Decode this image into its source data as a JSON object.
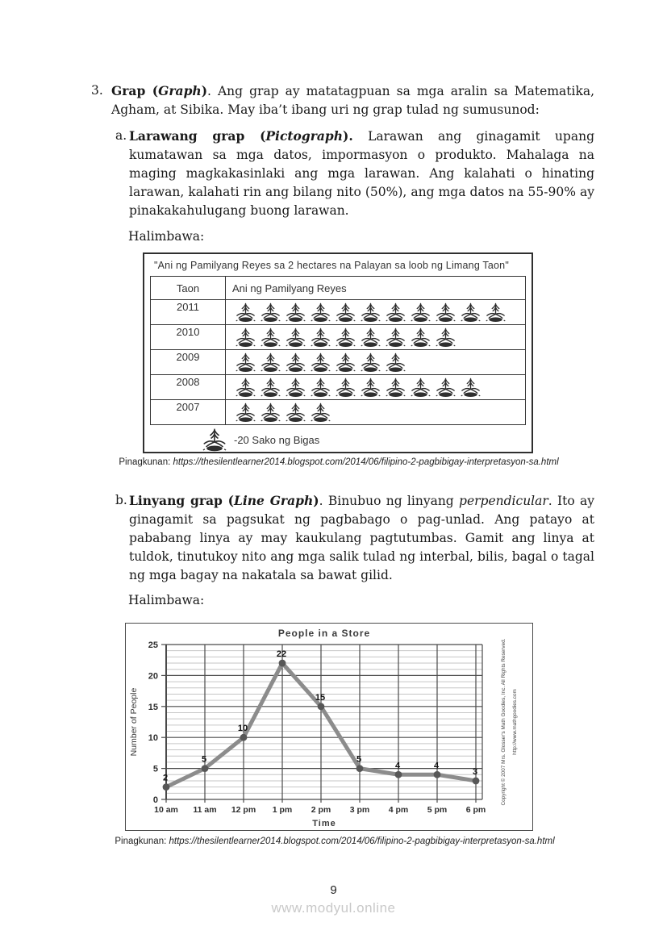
{
  "item3": {
    "marker": "3.",
    "bold1": "Grap (",
    "bold_italic1": "Graph",
    "bold2": ")",
    "text": ". Ang grap ay matatagpuan sa mga aralin sa Matematika, Agham, at Sibika. May iba’t ibang uri ng grap tulad ng sumusunod:"
  },
  "item_a": {
    "marker": "a.",
    "bold1": "Larawang grap (",
    "bold_italic1": "Pictograph",
    "bold2": ").",
    "text": " Larawan ang ginagamit upang kumatawan sa mga datos, impormasyon o produkto. Mahalaga na maging magkakasinlaki ang mga larawan. Ang kalahati o hinating larawan, kalahati rin ang bilang nito (50%), ang mga datos na 55-90% ay pinakakahulugang buong larawan."
  },
  "halimbawa1": "Halimbawa:",
  "pictograph": {
    "title": "\"Ani ng Pamilyang Reyes sa 2 hectares na Palayan sa loob ng Limang Taon\"",
    "col1": "Taon",
    "col2": "Ani ng Pamilyang Reyes",
    "rows": [
      {
        "year": "2011",
        "icons": 11
      },
      {
        "year": "2010",
        "icons": 9
      },
      {
        "year": "2009",
        "icons": 7
      },
      {
        "year": "2008",
        "icons": 10
      },
      {
        "year": "2007",
        "icons": 4
      }
    ],
    "legend_label": "-20 Sako ng Bigas",
    "icon_name": "rice-plant-icon"
  },
  "caption1": {
    "label": "Pinagkunan: ",
    "url": "https://thesilentlearner2014.blogspot.com/2014/06/filipino-2-pagbibigay-interpretasyon-sa.html"
  },
  "item_b": {
    "marker": "b.",
    "bold1": "Linyang grap (",
    "bold_italic1": "Line Graph",
    "bold2": ")",
    "text_pre": ". Binubuo ng linyang ",
    "italic1": "perpendicular",
    "text": ". Ito ay ginagamit sa pagsukat ng pagbabago o pag-unlad. Ang patayo at pababang linya ay may kaukulang pagtutumbas. Gamit ang linya at tuldok, tinutukoy nito ang mga salik tulad ng interbal, bilis, bagal o tagal ng mga bagay na nakatala sa bawat gilid."
  },
  "halimbawa2": "Halimbawa:",
  "chart_data": {
    "type": "line",
    "title": "People in a Store",
    "xlabel": "Time",
    "ylabel": "Number of People",
    "x_labels": [
      "10 am",
      "11 am",
      "12 pm",
      "1 pm",
      "2 pm",
      "3 pm",
      "4 pm",
      "5 pm",
      "6 pm"
    ],
    "values": [
      2,
      5,
      10,
      22,
      15,
      5,
      4,
      4,
      3
    ],
    "point_labels": [
      "2",
      "5",
      "10",
      "22",
      "15",
      "5",
      "4",
      "4",
      "3"
    ],
    "ylim": [
      0,
      25
    ],
    "y_major_step": 5,
    "y_minor_step": 1,
    "legend_position": "none",
    "grid": "horizontal minor light + major dark, vertical dark per hour",
    "colors": {
      "line": "#8c8c8c",
      "point": "#575757",
      "grid_major": "#4a4a4a",
      "grid_minor": "#c6c6c6",
      "text": "#2e2e2e",
      "label": "#111111"
    },
    "copyright_line1": "Copyright © 2007 Mrs. Glosser's Math Goodies, Inc. All Rights Reserved.",
    "copyright_line2": "http://www.mathgoodies.com"
  },
  "caption2": {
    "label": "Pinagkunan: ",
    "url": "https://thesilentlearner2014.blogspot.com/2014/06/filipino-2-pagbibigay-interpretasyon-sa.html"
  },
  "footer": {
    "page_number": "9",
    "watermark": "www.modyul.online"
  }
}
